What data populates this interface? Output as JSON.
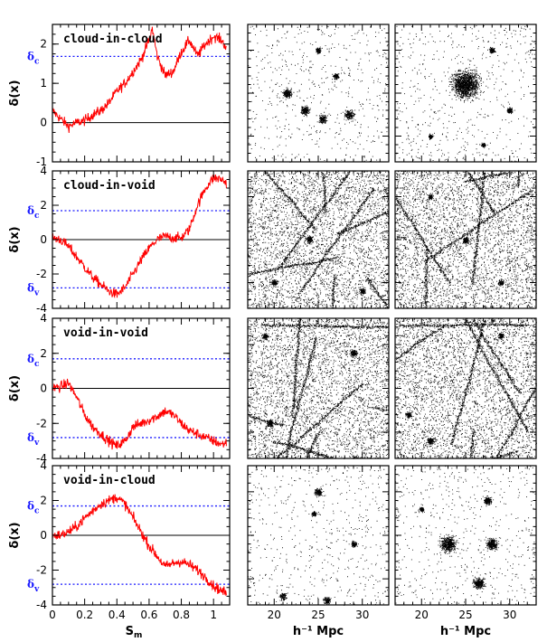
{
  "chart_data": {
    "type": "line",
    "layout": "4 rows x 3 columns",
    "line_panels": [
      {
        "label": "cloud-in-cloud",
        "ylabel": "δ(x)",
        "ylim": [
          -1,
          2.5
        ],
        "yticks": [
          "-1",
          "0",
          "1",
          "2"
        ],
        "thresholds": [
          {
            "name": "δc",
            "value": 1.686
          }
        ],
        "series": [
          {
            "color": "#ff0000",
            "x": [
              0,
              0.05,
              0.1,
              0.15,
              0.2,
              0.25,
              0.3,
              0.35,
              0.4,
              0.45,
              0.5,
              0.55,
              0.6,
              0.62,
              0.65,
              0.7,
              0.75,
              0.8,
              0.85,
              0.9,
              0.95,
              1.0,
              1.05,
              1.08
            ],
            "y": [
              0.3,
              0.1,
              -0.1,
              0.0,
              0.05,
              0.2,
              0.3,
              0.5,
              0.8,
              1.0,
              1.3,
              1.6,
              2.1,
              2.4,
              1.7,
              1.2,
              1.3,
              1.8,
              2.1,
              1.7,
              2.0,
              2.2,
              2.1,
              1.9
            ]
          }
        ]
      },
      {
        "label": "cloud-in-void",
        "ylabel": "δ(x)",
        "ylim": [
          -4,
          4
        ],
        "yticks": [
          "-4",
          "-2",
          "0",
          "2",
          "4"
        ],
        "thresholds": [
          {
            "name": "δc",
            "value": 1.686
          },
          {
            "name": "δv",
            "value": -2.81
          }
        ],
        "series": [
          {
            "color": "#ff0000",
            "x": [
              0,
              0.05,
              0.1,
              0.15,
              0.2,
              0.25,
              0.3,
              0.35,
              0.4,
              0.45,
              0.5,
              0.55,
              0.6,
              0.65,
              0.7,
              0.75,
              0.8,
              0.85,
              0.9,
              0.95,
              1.0,
              1.05,
              1.08
            ],
            "y": [
              0.1,
              0.0,
              -0.4,
              -1.0,
              -1.6,
              -2.2,
              -2.6,
              -3.0,
              -3.2,
              -2.8,
              -2.0,
              -1.2,
              -0.5,
              0.0,
              0.2,
              0.1,
              0.1,
              0.6,
              2.0,
              3.0,
              3.6,
              3.5,
              3.3
            ]
          }
        ]
      },
      {
        "label": "void-in-void",
        "ylabel": "δ(x)",
        "ylim": [
          -4,
          4
        ],
        "yticks": [
          "-4",
          "-2",
          "0",
          "2",
          "4"
        ],
        "thresholds": [
          {
            "name": "δc",
            "value": 1.686
          },
          {
            "name": "δv",
            "value": -2.81
          }
        ],
        "series": [
          {
            "color": "#ff0000",
            "x": [
              0,
              0.05,
              0.1,
              0.15,
              0.2,
              0.25,
              0.3,
              0.35,
              0.4,
              0.45,
              0.5,
              0.55,
              0.6,
              0.65,
              0.7,
              0.75,
              0.8,
              0.85,
              0.9,
              0.95,
              1.0,
              1.05,
              1.08
            ],
            "y": [
              0.0,
              0.1,
              0.3,
              -0.5,
              -1.5,
              -2.2,
              -2.6,
              -3.0,
              -3.3,
              -3.0,
              -2.2,
              -2.0,
              -1.8,
              -1.6,
              -1.3,
              -1.5,
              -2.0,
              -2.4,
              -2.6,
              -2.8,
              -3.0,
              -3.2,
              -3.1
            ]
          }
        ]
      },
      {
        "label": "void-in-cloud",
        "ylabel": "δ(x)",
        "ylim": [
          -4,
          4
        ],
        "yticks": [
          "-4",
          "-2",
          "0",
          "2",
          "4"
        ],
        "xticks": [
          "0",
          "0.2",
          "0.4",
          "0.6",
          "0.8",
          "1"
        ],
        "xlabel": "S",
        "xlabel_sub": "m",
        "thresholds": [
          {
            "name": "δc",
            "value": 1.686
          },
          {
            "name": "δv",
            "value": -2.81
          }
        ],
        "series": [
          {
            "color": "#ff0000",
            "x": [
              0,
              0.05,
              0.1,
              0.15,
              0.2,
              0.25,
              0.3,
              0.35,
              0.4,
              0.45,
              0.5,
              0.55,
              0.6,
              0.65,
              0.7,
              0.75,
              0.8,
              0.85,
              0.9,
              0.95,
              1.0,
              1.05,
              1.08
            ],
            "y": [
              0.0,
              0.0,
              0.2,
              0.5,
              1.0,
              1.4,
              1.8,
              2.0,
              2.2,
              1.8,
              1.0,
              0.2,
              -0.6,
              -1.2,
              -1.8,
              -1.6,
              -1.5,
              -1.7,
              -2.0,
              -2.4,
              -2.9,
              -3.2,
              -3.3
            ]
          }
        ]
      }
    ],
    "xlim": [
      0,
      1.1
    ],
    "particle_panels": {
      "xlabel": "h⁻¹ Mpc",
      "xticks": [
        "20",
        "25",
        "30"
      ],
      "columns": 2,
      "rows": [
        {
          "style": "isolated halos",
          "halos": [
            [
              21.5,
              25,
              0.8
            ],
            [
              23.5,
              23,
              0.8
            ],
            [
              25.5,
              22,
              0.7
            ],
            [
              28.5,
              22.5,
              0.8
            ],
            [
              25,
              30,
              0.5
            ],
            [
              27,
              27,
              0.5
            ]
          ],
          "halos2": [
            [
              25,
              26,
              2.4
            ],
            [
              28,
              30,
              0.5
            ],
            [
              21,
              20,
              0.4
            ],
            [
              30,
              23,
              0.5
            ],
            [
              27,
              19,
              0.4
            ]
          ]
        },
        {
          "style": "dense web",
          "halos": [
            [
              24,
              25,
              0.6
            ],
            [
              20,
              20,
              0.5
            ],
            [
              30,
              19,
              0.5
            ]
          ],
          "halos2": [
            [
              25,
              25,
              0.5
            ],
            [
              29,
              20,
              0.5
            ],
            [
              21,
              30,
              0.4
            ]
          ]
        },
        {
          "style": "dense web",
          "halos": [
            [
              19.5,
              21,
              0.6
            ],
            [
              29,
              29,
              0.6
            ],
            [
              19,
              31,
              0.5
            ]
          ],
          "halos2": [
            [
              21,
              19,
              0.6
            ],
            [
              29,
              31,
              0.5
            ],
            [
              18.5,
              22,
              0.5
            ]
          ]
        },
        {
          "style": "isolated halos",
          "halos": [
            [
              25,
              30,
              0.7
            ],
            [
              21,
              18,
              0.6
            ],
            [
              26,
              17.5,
              0.6
            ],
            [
              29,
              24,
              0.5
            ],
            [
              24.5,
              27.5,
              0.4
            ]
          ],
          "halos2": [
            [
              23,
              24,
              1.4
            ],
            [
              28,
              24,
              1.0
            ],
            [
              26.5,
              19.5,
              1.0
            ],
            [
              27.5,
              29,
              0.7
            ],
            [
              20,
              28,
              0.4
            ]
          ]
        }
      ]
    }
  }
}
